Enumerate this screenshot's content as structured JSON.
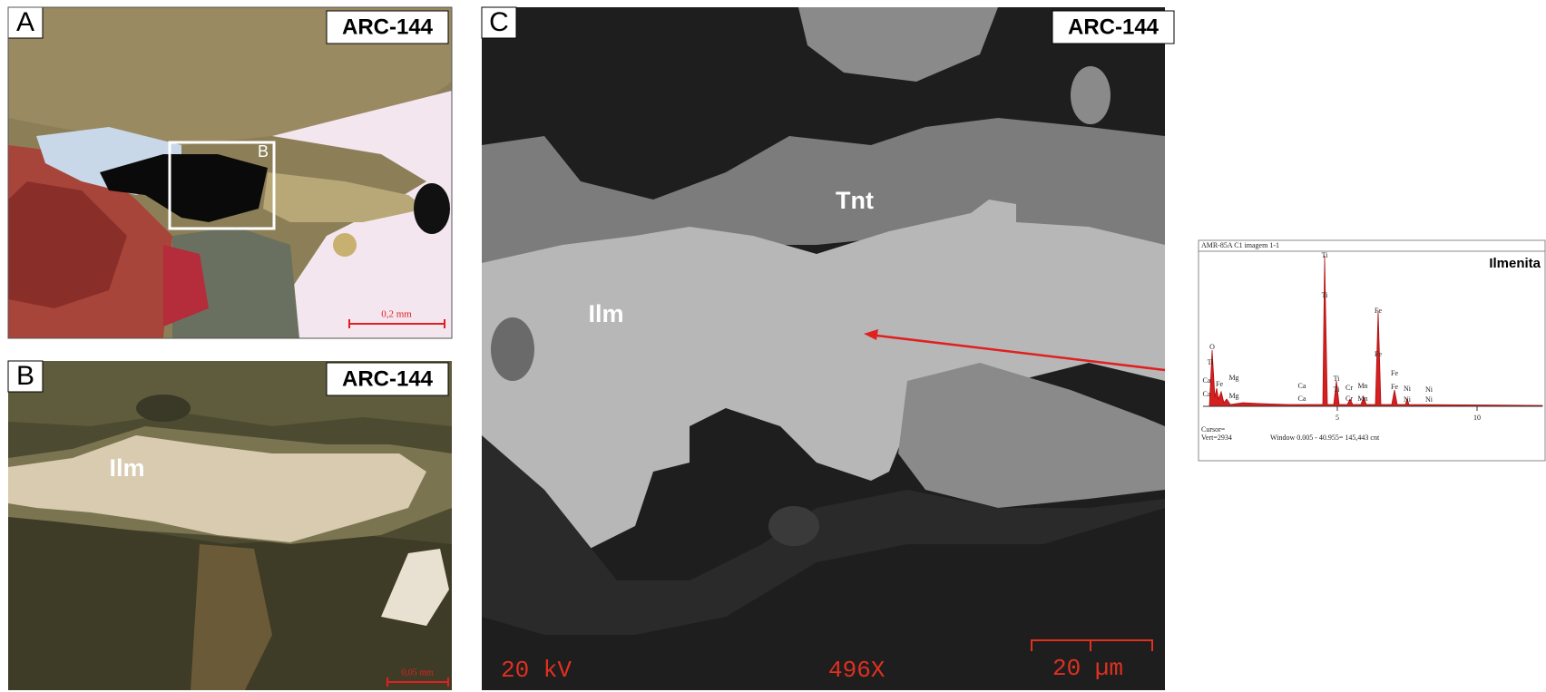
{
  "panels": [
    {
      "letter": "A",
      "sample": "ARC-144",
      "box_label": "B",
      "scale": "0,2 mm"
    },
    {
      "letter": "B",
      "sample": "ARC-144",
      "scale": "0,05 mm",
      "labels": [
        "Ilm"
      ]
    },
    {
      "letter": "C",
      "sample": "ARC-144",
      "labels": [
        "Tnt",
        "Ilm"
      ],
      "voltage": "20 kV",
      "magnification": "496X",
      "scale": "20 µm"
    }
  ],
  "spectrum": {
    "title": "AMR-85A C1 imagem 1-1",
    "mineral": "Ilmenita",
    "peak_labels": [
      "Ti",
      "Ti",
      "Fe",
      "Fe",
      "O",
      "Ti",
      "Ca",
      "Fe",
      "Mg",
      "Ca",
      "Mg",
      "Ca",
      "Ca",
      "Ti",
      "Ti",
      "Cr",
      "Mn",
      "Cr",
      "Mn",
      "Fe",
      "Fe",
      "Ni",
      "Ni",
      "Ni",
      "Ni"
    ],
    "ticks": [
      "5",
      "10"
    ],
    "cursor": "Cursor=",
    "vert": "Vert=2934",
    "window": "Window 0.005 - 40.955=  145,443 cnt"
  }
}
